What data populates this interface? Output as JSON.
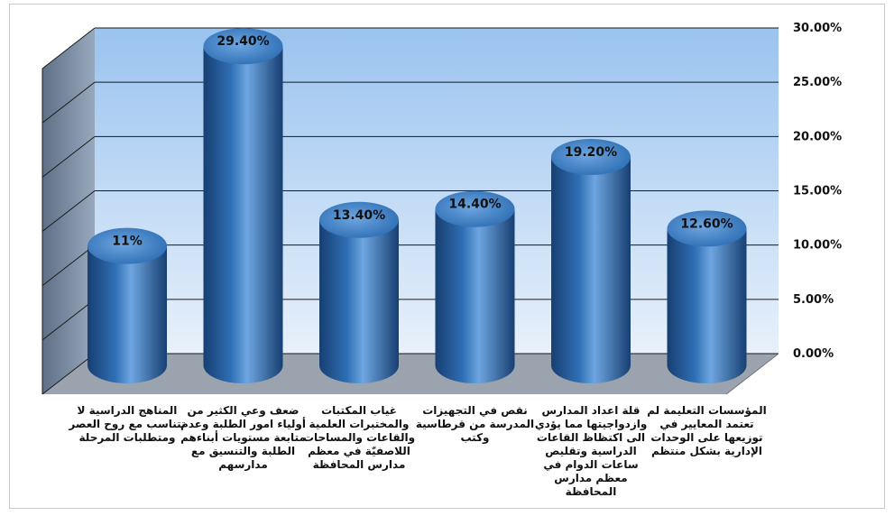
{
  "chart_data": {
    "type": "bar",
    "style": "3d-cylinder",
    "categories": [
      "المناهج الدراسية لا تتناسب مع روح العصر ومتطلبات المرحلة",
      "ضعف وعي الكثير من أولياء امور الطلبة وعدم متابعة مستويات أبناءهم الطلبة والتنسيق مع مدارسهم",
      "غياب المكتبات والمختبرات العلمية والقاعات والمساحات اللاصفيّة في معظم مدارس المحافظة",
      "نقص في التجهيزات المدرسة من قرطاسية وكتب",
      "قلة اعداد المدارس وازدواجيتها مما يؤدي الى اكتظاظ القاعات الدراسية وتقليص ساعات الدوام في معظم مدارس المحافظة",
      "المؤسسات التعليمة لم تعتمد المعايير في توزيعها على الوحدات الإدارية بشكل منتظم"
    ],
    "values": [
      11,
      29.4,
      13.4,
      14.4,
      19.2,
      12.6
    ],
    "data_labels": [
      "11%",
      "29.40%",
      "13.40%",
      "14.40%",
      "19.20%",
      "12.60%"
    ],
    "y_ticks": [
      "0.00%",
      "5.00%",
      "10.00%",
      "15.00%",
      "20.00%",
      "25.00%",
      "30.00%"
    ],
    "ylim": [
      0,
      30
    ],
    "grid": true,
    "axis_side": "right",
    "colors": {
      "bar": "#2f6fb5",
      "bar_dark": "#173f72",
      "bar_light": "#6ea6e0",
      "wall_top": "#9ac3ef",
      "wall_bottom": "#e8f1fb",
      "side_wall": "#7d8da3",
      "floor": "#9aa3ae",
      "grid": "#1a1a1a"
    }
  }
}
